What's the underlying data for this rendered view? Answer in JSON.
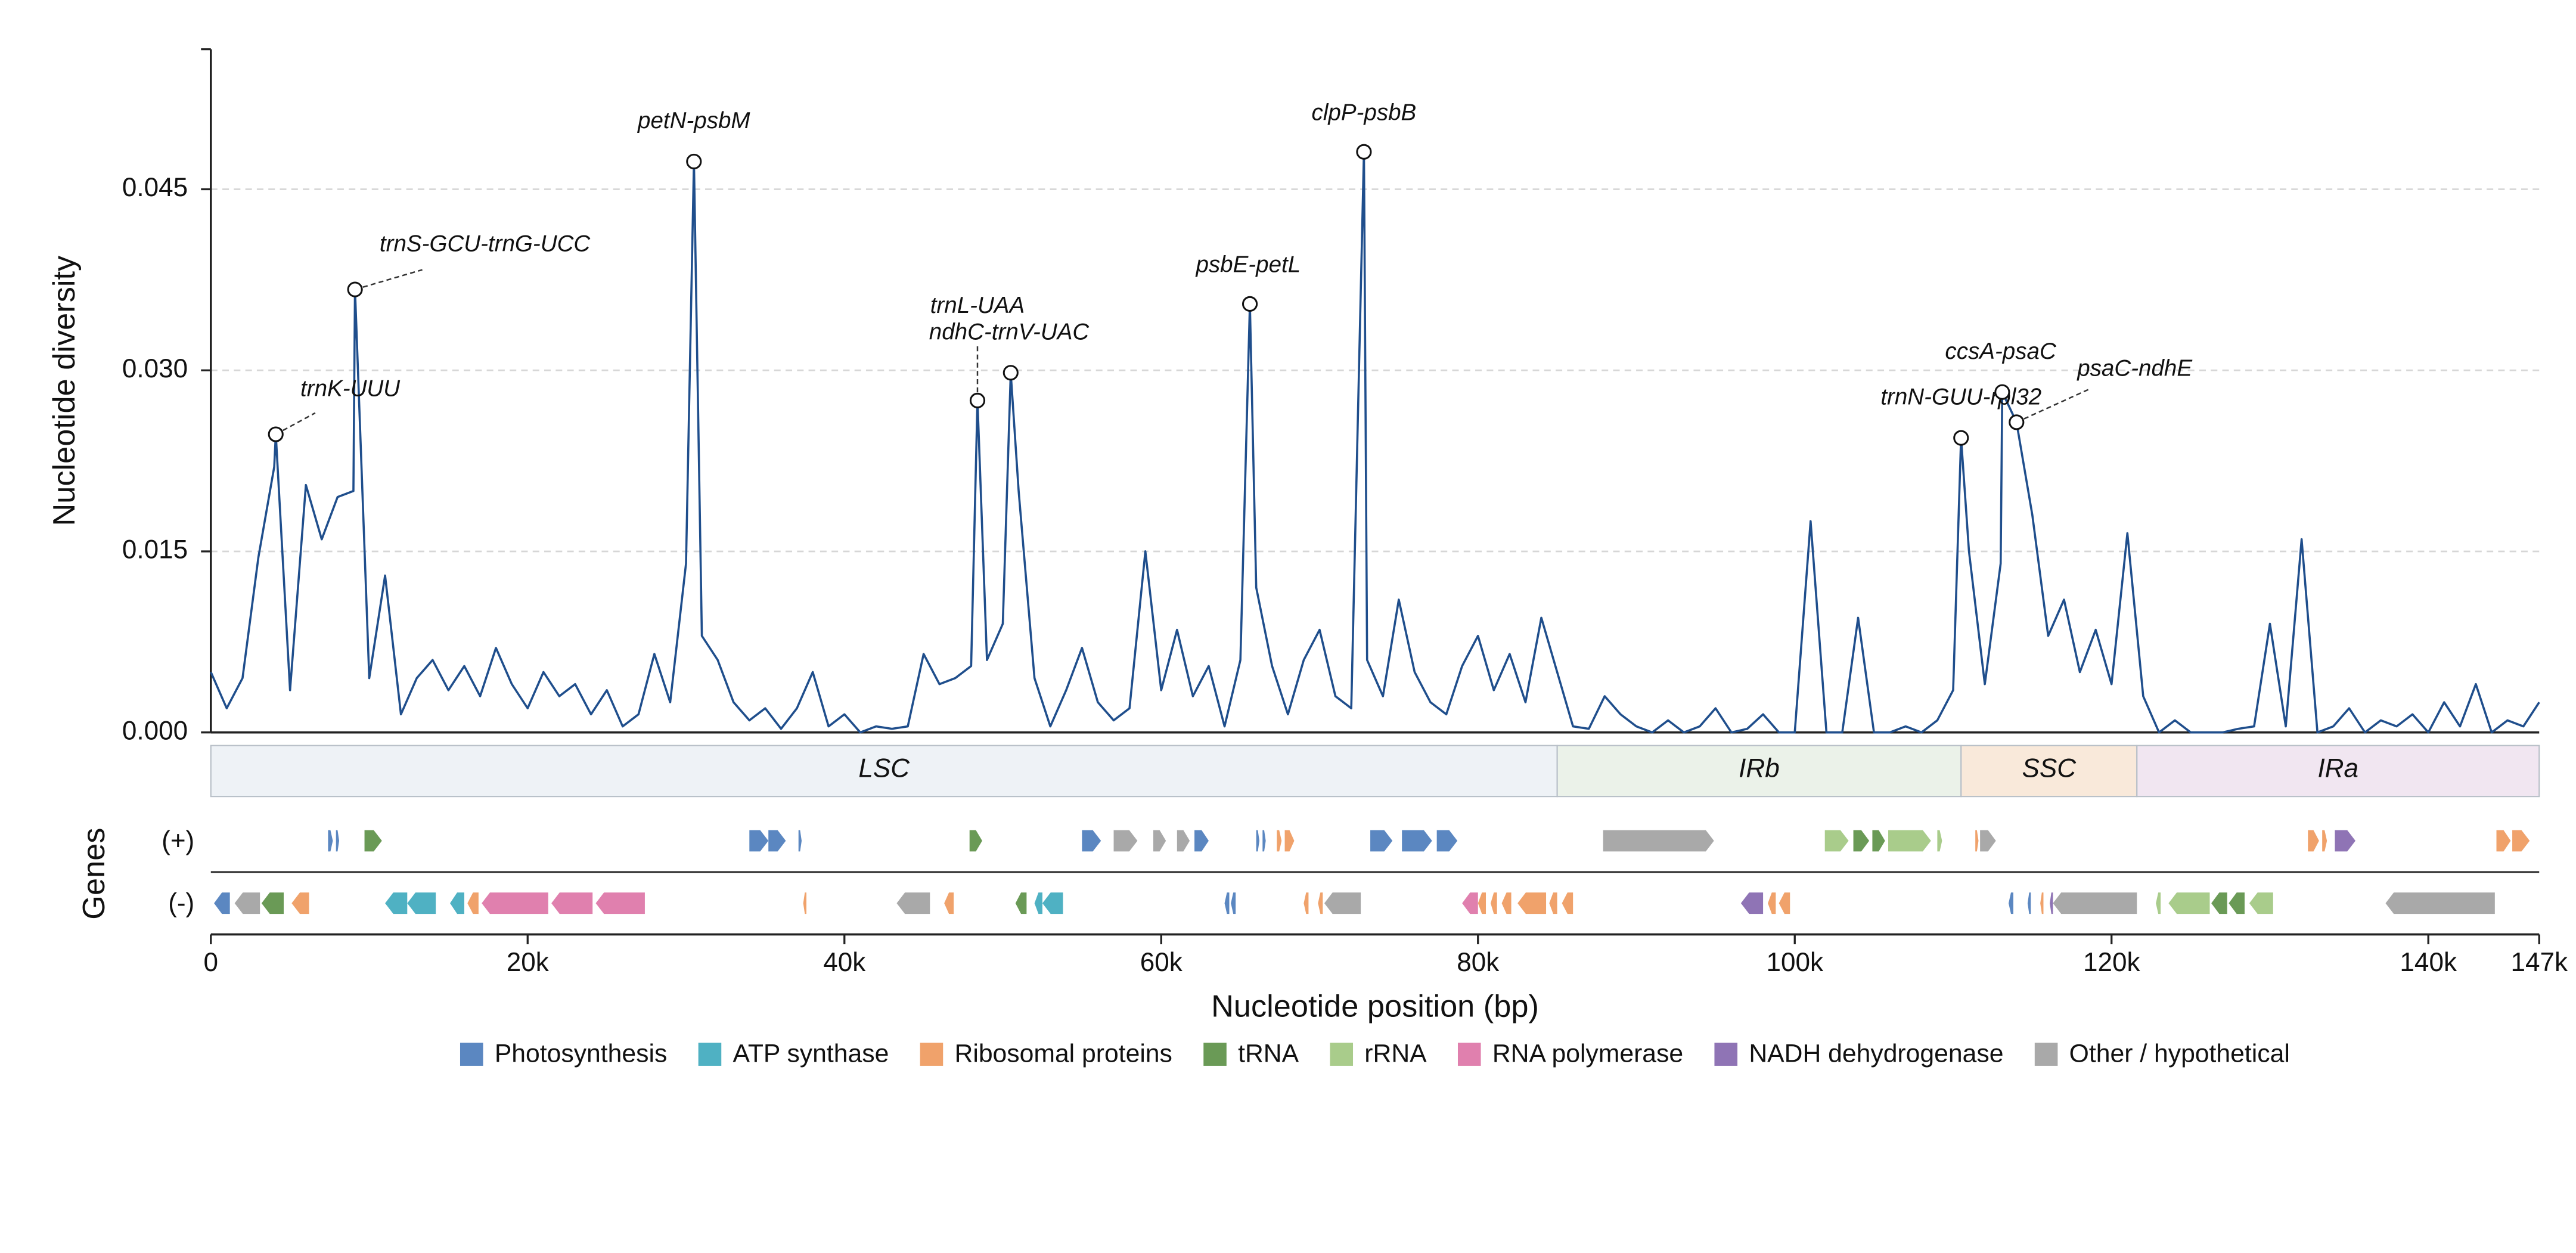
{
  "chart_data": {
    "type": "line",
    "ylabel": "Nucleotide diversity",
    "xlabel": "Nucleotide position (bp)",
    "gene_axis_label": "Genes",
    "strand_labels": [
      "(+)",
      "(-)"
    ],
    "line_color": "#1f4e8c",
    "grid": true,
    "xlim": [
      0,
      147000
    ],
    "xticks": [
      0,
      {
        "value": 20000,
        "label": "20k"
      },
      {
        "value": 40000,
        "label": "40k"
      },
      {
        "value": 60000,
        "label": "60k"
      },
      {
        "value": 80000,
        "label": "80k"
      },
      {
        "value": 100000,
        "label": "100k"
      },
      {
        "value": 120000,
        "label": "120k"
      },
      {
        "value": 140000,
        "label": "140k"
      },
      {
        "value": 147000,
        "label": "147k"
      }
    ],
    "ylim": [
      0,
      0.0566
    ],
    "yticks": [
      {
        "value": 0,
        "label": "0.000"
      },
      {
        "value": 0.015,
        "label": "0.015"
      },
      {
        "value": 0.03,
        "label": "0.030"
      },
      {
        "value": 0.045,
        "label": "0.045"
      }
    ],
    "x": [
      0,
      1000,
      2000,
      3000,
      4000,
      4100,
      5000,
      6000,
      7000,
      8000,
      9000,
      9100,
      10000,
      11000,
      12000,
      13000,
      14000,
      15000,
      16000,
      17000,
      18000,
      19000,
      20000,
      21000,
      22000,
      23000,
      24000,
      25000,
      26000,
      27000,
      28000,
      29000,
      30000,
      30500,
      31000,
      32000,
      33000,
      34000,
      35000,
      36000,
      37000,
      38000,
      39000,
      40000,
      41000,
      42000,
      43000,
      44000,
      45000,
      46000,
      47000,
      48000,
      48400,
      49000,
      50000,
      50500,
      51000,
      52000,
      53000,
      54000,
      55000,
      56000,
      57000,
      58000,
      59000,
      60000,
      61000,
      62000,
      63000,
      64000,
      65000,
      65600,
      66000,
      67000,
      68000,
      69000,
      70000,
      71000,
      72000,
      72800,
      73000,
      74000,
      75000,
      76000,
      77000,
      78000,
      79000,
      80000,
      81000,
      82000,
      83000,
      84000,
      85000,
      86000,
      87000,
      88000,
      89000,
      90000,
      91000,
      92000,
      93000,
      94000,
      95000,
      96000,
      97000,
      98000,
      99000,
      100000,
      101000,
      102000,
      103000,
      104000,
      105000,
      106000,
      107000,
      108000,
      109000,
      110000,
      110500,
      111000,
      112000,
      113000,
      113100,
      114000,
      115000,
      116000,
      117000,
      118000,
      119000,
      120000,
      121000,
      122000,
      123000,
      124000,
      125000,
      126000,
      127000,
      128000,
      129000,
      130000,
      131000,
      132000,
      133000,
      134000,
      135000,
      136000,
      137000,
      138000,
      139000,
      140000,
      141000,
      142000,
      143000,
      144000,
      145000,
      146000,
      147000
    ],
    "values": [
      0.005,
      0.002,
      0.0045,
      0.0145,
      0.022,
      0.0247,
      0.0035,
      0.0205,
      0.016,
      0.0195,
      0.02,
      0.0367,
      0.0045,
      0.013,
      0.0015,
      0.0045,
      0.006,
      0.0035,
      0.0055,
      0.003,
      0.007,
      0.004,
      0.002,
      0.005,
      0.003,
      0.004,
      0.0015,
      0.0035,
      0.0005,
      0.0015,
      0.0065,
      0.0025,
      0.014,
      0.0473,
      0.008,
      0.006,
      0.0025,
      0.001,
      0.002,
      0.0003,
      0.002,
      0.005,
      0.0005,
      0.0015,
      0.0,
      0.0005,
      0.0003,
      0.0005,
      0.0065,
      0.004,
      0.0045,
      0.0055,
      0.0275,
      0.006,
      0.009,
      0.0298,
      0.02,
      0.0045,
      0.0005,
      0.0035,
      0.007,
      0.0025,
      0.001,
      0.002,
      0.015,
      0.0035,
      0.0085,
      0.003,
      0.0055,
      0.0005,
      0.006,
      0.0355,
      0.012,
      0.0055,
      0.0015,
      0.006,
      0.0085,
      0.003,
      0.002,
      0.0481,
      0.006,
      0.003,
      0.011,
      0.005,
      0.0025,
      0.0015,
      0.0055,
      0.008,
      0.0035,
      0.0065,
      0.0025,
      0.0095,
      0.005,
      0.0005,
      0.0003,
      0.003,
      0.0015,
      0.0005,
      0.0,
      0.001,
      0.0,
      0.0005,
      0.002,
      0.0,
      0.0003,
      0.0015,
      0.0,
      0.0,
      0.0175,
      0.0,
      0.0,
      0.0095,
      0.0,
      0.0,
      0.0005,
      0.0,
      0.001,
      0.0035,
      0.0244,
      0.015,
      0.004,
      0.014,
      0.0282,
      0.0257,
      0.018,
      0.008,
      0.011,
      0.005,
      0.0085,
      0.004,
      0.0165,
      0.003,
      0.0,
      0.001,
      0.0,
      0.0,
      0.0,
      0.0003,
      0.0005,
      0.009,
      0.0005,
      0.016,
      0.0,
      0.0005,
      0.002,
      0.0,
      0.001,
      0.0005,
      0.0015,
      0.0,
      0.0025,
      0.0005,
      0.004,
      0.0,
      0.001,
      0.0005,
      0.0025
    ],
    "peaks": [
      {
        "label": "trnK-UUU",
        "x": 4100,
        "y": 0.0247
      },
      {
        "label": "trnS-GCU-trnG-UCC",
        "x": 9100,
        "y": 0.0367
      },
      {
        "label": "petN-psbM",
        "x": 30500,
        "y": 0.0473
      },
      {
        "label": "trnL-UAA",
        "x": 48400,
        "y": 0.0275
      },
      {
        "label": "ndhC-trnV-UAC",
        "x": 50500,
        "y": 0.0298
      },
      {
        "label": "psbE-petL",
        "x": 65600,
        "y": 0.0355
      },
      {
        "label": "clpP-psbB",
        "x": 72800,
        "y": 0.0481
      },
      {
        "label": "trnN-GUU-rpl32",
        "x": 110500,
        "y": 0.0244
      },
      {
        "label": "ccsA-psaC",
        "x": 113100,
        "y": 0.0282
      },
      {
        "label": "psaC-ndhE",
        "x": 114000,
        "y": 0.0257
      }
    ],
    "regions": [
      {
        "label": "LSC",
        "start": 0,
        "end": 85000,
        "color": "#eef2f6"
      },
      {
        "label": "IRb",
        "start": 85000,
        "end": 110500,
        "color": "#ebf2e9"
      },
      {
        "label": "SSC",
        "start": 110500,
        "end": 121600,
        "color": "#f9e9da"
      },
      {
        "label": "IRa",
        "start": 121600,
        "end": 147000,
        "color": "#f1e6f1"
      }
    ],
    "series": [
      {
        "name": "Photosynthesis",
        "color": "#5b87c1",
        "plus": [
          [
            7400,
            7700
          ],
          [
            7900,
            8100
          ],
          [
            34000,
            35200
          ],
          [
            35200,
            36300
          ],
          [
            37100,
            37300
          ],
          [
            55000,
            56200
          ],
          [
            62100,
            63000
          ],
          [
            66000,
            66200
          ],
          [
            66400,
            66600
          ],
          [
            73200,
            74600
          ],
          [
            75200,
            77100
          ],
          [
            77400,
            78700
          ]
        ],
        "minus": [
          [
            200,
            1200
          ],
          [
            64000,
            64300
          ],
          [
            64400,
            64700
          ],
          [
            113500,
            113800
          ],
          [
            114700,
            114900
          ]
        ]
      },
      {
        "name": "ATP synthase",
        "color": "#4fb1c3",
        "plus": [],
        "minus": [
          [
            11000,
            12400
          ],
          [
            12400,
            14200
          ],
          [
            15100,
            16000
          ],
          [
            52000,
            52500
          ],
          [
            52500,
            53800
          ]
        ]
      },
      {
        "name": "Ribosomal proteins",
        "color": "#f0a26b",
        "plus": [
          [
            67300,
            67600
          ],
          [
            67800,
            68400
          ],
          [
            111400,
            111600
          ],
          [
            132400,
            133100
          ],
          [
            133300,
            133600
          ],
          [
            144300,
            145200
          ],
          [
            145300,
            146400
          ]
        ],
        "minus": [
          [
            5100,
            6200
          ],
          [
            16200,
            16900
          ],
          [
            37400,
            37600
          ],
          [
            46300,
            46900
          ],
          [
            69000,
            69300
          ],
          [
            69900,
            70200
          ],
          [
            80000,
            80500
          ],
          [
            80800,
            81200
          ],
          [
            81500,
            82100
          ],
          [
            82500,
            84300
          ],
          [
            84500,
            85000
          ],
          [
            85300,
            86000
          ],
          [
            98300,
            98800
          ],
          [
            99000,
            99700
          ],
          [
            115500,
            115700
          ]
        ]
      },
      {
        "name": "tRNA",
        "color": "#6a9a56",
        "plus": [
          [
            9700,
            10800
          ],
          [
            47900,
            48700
          ],
          [
            103700,
            104700
          ],
          [
            104900,
            105700
          ]
        ],
        "minus": [
          [
            3200,
            4600
          ],
          [
            50800,
            51500
          ],
          [
            126300,
            127300
          ],
          [
            127400,
            128400
          ]
        ]
      },
      {
        "name": "rRNA",
        "color": "#a9cc8b",
        "plus": [
          [
            101900,
            103400
          ],
          [
            105900,
            108600
          ],
          [
            109000,
            109300
          ]
        ],
        "minus": [
          [
            122800,
            123100
          ],
          [
            123600,
            126200
          ],
          [
            128700,
            130200
          ]
        ]
      },
      {
        "name": "RNA polymerase",
        "color": "#e080ae",
        "plus": [],
        "minus": [
          [
            17100,
            21300
          ],
          [
            21500,
            24100
          ],
          [
            24300,
            27400
          ],
          [
            79000,
            80000
          ]
        ]
      },
      {
        "name": "NADH dehydrogenase",
        "color": "#8f74b5",
        "plus": [
          [
            134100,
            135400
          ]
        ],
        "minus": [
          [
            96600,
            98000
          ],
          [
            116100,
            116300
          ]
        ]
      },
      {
        "name": "Other / hypothetical",
        "color": "#a9a9a9",
        "plus": [
          [
            57000,
            58500
          ],
          [
            59500,
            60300
          ],
          [
            61000,
            61800
          ],
          [
            87900,
            94900
          ],
          [
            111700,
            112700
          ]
        ],
        "minus": [
          [
            1500,
            3100
          ],
          [
            43300,
            45400
          ],
          [
            70300,
            72600
          ],
          [
            116300,
            121600
          ],
          [
            137300,
            144200
          ]
        ]
      }
    ]
  }
}
